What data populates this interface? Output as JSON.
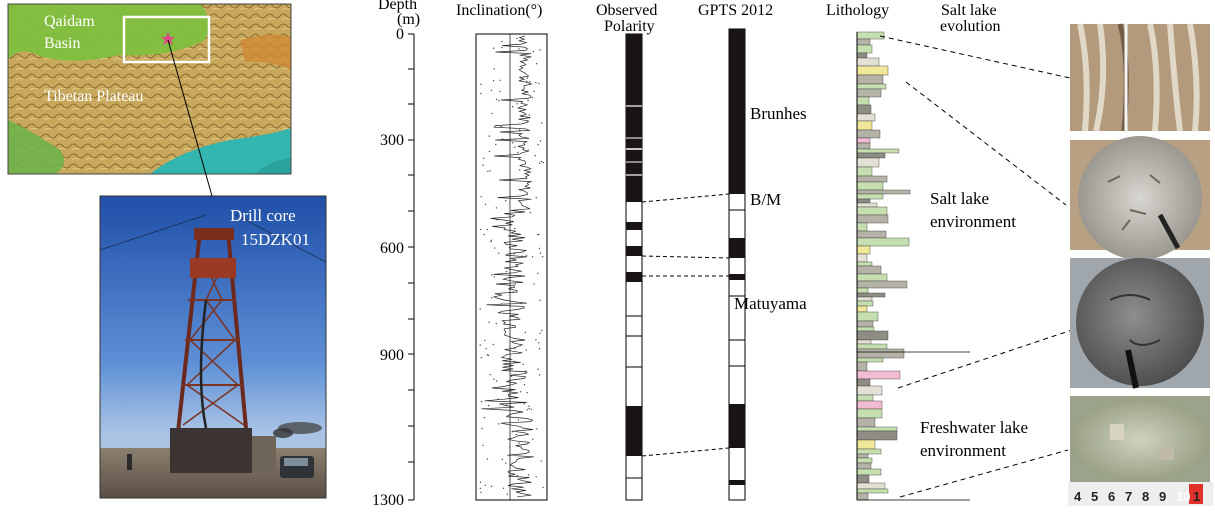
{
  "map": {
    "basin_line1": "Qaidam",
    "basin_line2": "Basin",
    "plateau": "Tibetan  Plateau"
  },
  "photo": {
    "caption_line1": "Drill core",
    "caption_line2": "15DZK01"
  },
  "headers": {
    "depth_line1": "Depth",
    "depth_line2": "(m)",
    "inclination": "Inclination(°)",
    "observed_line1": "Observed",
    "observed_line2": "Polarity",
    "gpts": "GPTS 2012",
    "lithology": "Lithology",
    "salt_line1": "Salt lake",
    "salt_line2": "evolution"
  },
  "depth_ticks": [
    "0",
    "300",
    "600",
    "900",
    "1300"
  ],
  "chron_labels": {
    "brunhes": "Brunhes",
    "bm": "B/M",
    "matuyama": "Matuyama"
  },
  "environments": {
    "salt_line1": "Salt lake",
    "salt_line2": "environment",
    "fresh_line1": "Freshwater lake",
    "fresh_line2": "environment"
  },
  "ruler_digits": [
    "4",
    "5",
    "6",
    "7",
    "8",
    "9",
    "10",
    "1"
  ],
  "colors": {
    "polarity_black": "#1a1515",
    "line": "#000000",
    "litho_green": "#c6dfb0",
    "litho_gray": "#b5b2a8",
    "litho_yellow": "#f1e79a",
    "litho_pink": "#f2bcd3",
    "map_box": "#ffffff",
    "star": "#e04a8a",
    "photo_text": "#ffffff"
  }
}
